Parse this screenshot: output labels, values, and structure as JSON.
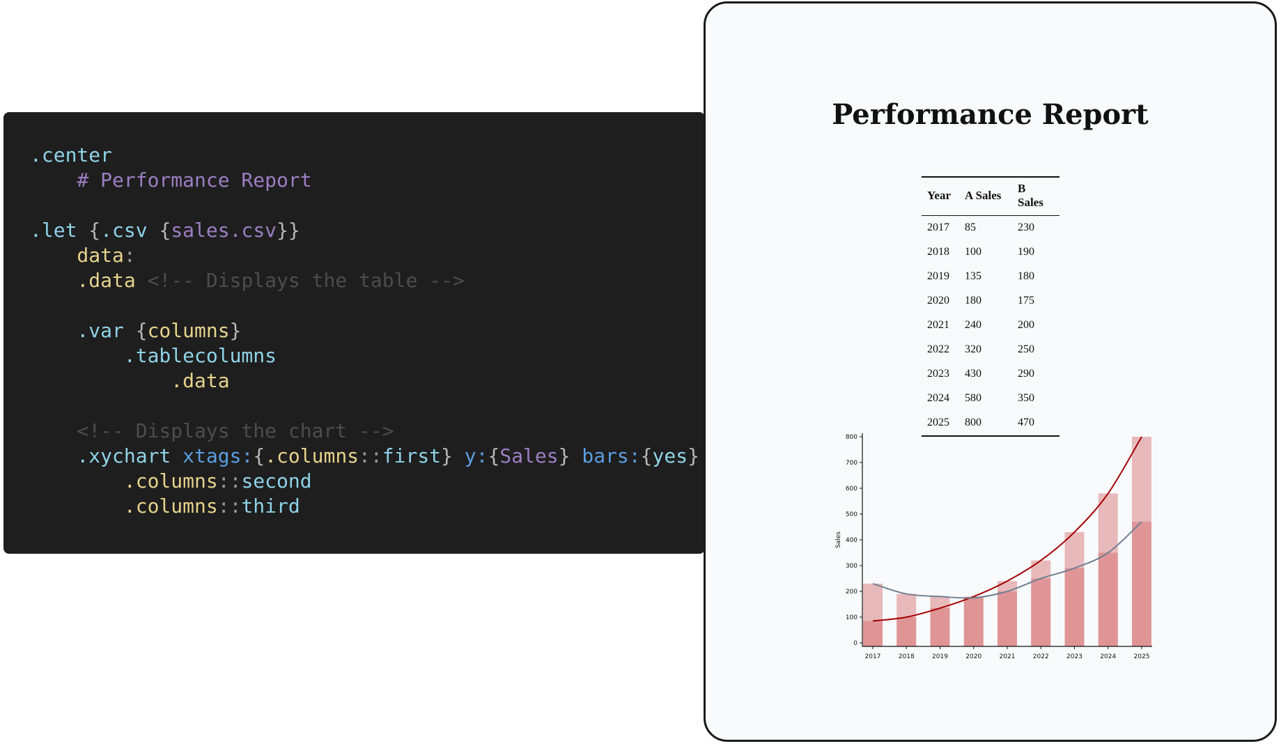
{
  "editor": {
    "lines": [
      [
        [
          ".center",
          "t-dir"
        ]
      ],
      [
        [
          "    # Performance Report",
          "t-head"
        ]
      ],
      [],
      [
        [
          ".let ",
          "t-dir"
        ],
        [
          "{",
          "t-br"
        ],
        [
          ".csv ",
          "t-dir"
        ],
        [
          "{",
          "t-br"
        ],
        [
          "sales.csv",
          "t-pur"
        ],
        [
          "}}",
          "t-br"
        ]
      ],
      [
        [
          "    data",
          "t-yel"
        ],
        [
          ":",
          "t-sep"
        ]
      ],
      [
        [
          "    .data ",
          "t-yel"
        ],
        [
          "<!-- Displays the table -->",
          "t-com"
        ]
      ],
      [],
      [
        [
          "    .var ",
          "t-dir"
        ],
        [
          "{",
          "t-br"
        ],
        [
          "columns",
          "t-yel"
        ],
        [
          "}",
          "t-br"
        ]
      ],
      [
        [
          "        .tablecolumns",
          "t-dir"
        ]
      ],
      [
        [
          "            .data",
          "t-yel"
        ]
      ],
      [],
      [
        [
          "    <!-- Displays the chart -->",
          "t-com"
        ]
      ],
      [
        [
          "    .xychart ",
          "t-dir"
        ],
        [
          "xtags:",
          "t-key"
        ],
        [
          "{",
          "t-br"
        ],
        [
          ".columns",
          "t-yel"
        ],
        [
          "::",
          "t-sep"
        ],
        [
          "first",
          "t-dir"
        ],
        [
          "} ",
          "t-br"
        ],
        [
          "y:",
          "t-key"
        ],
        [
          "{",
          "t-br"
        ],
        [
          "Sales",
          "t-pur"
        ],
        [
          "} ",
          "t-br"
        ],
        [
          "bars:",
          "t-key"
        ],
        [
          "{",
          "t-br"
        ],
        [
          "yes",
          "t-dir"
        ],
        [
          "}",
          "t-br"
        ]
      ],
      [
        [
          "        .columns",
          "t-yel"
        ],
        [
          "::",
          "t-sep"
        ],
        [
          "second",
          "t-dir"
        ]
      ],
      [
        [
          "        .columns",
          "t-yel"
        ],
        [
          "::",
          "t-sep"
        ],
        [
          "third",
          "t-dir"
        ]
      ]
    ]
  },
  "preview": {
    "title": "Performance Report",
    "table": {
      "headers": [
        "Year",
        "A Sales",
        "B Sales"
      ],
      "rows": [
        [
          "2017",
          "85",
          "230"
        ],
        [
          "2018",
          "100",
          "190"
        ],
        [
          "2019",
          "135",
          "180"
        ],
        [
          "2020",
          "180",
          "175"
        ],
        [
          "2021",
          "240",
          "200"
        ],
        [
          "2022",
          "320",
          "250"
        ],
        [
          "2023",
          "430",
          "290"
        ],
        [
          "2024",
          "580",
          "350"
        ],
        [
          "2025",
          "800",
          "470"
        ]
      ]
    }
  },
  "chart_data": {
    "type": "bar",
    "categories": [
      "2017",
      "2018",
      "2019",
      "2020",
      "2021",
      "2022",
      "2023",
      "2024",
      "2025"
    ],
    "series": [
      {
        "values": [
          85,
          100,
          135,
          180,
          240,
          320,
          430,
          580,
          800
        ],
        "bar_color": "#e4a7a7",
        "line_color": "#a30000"
      },
      {
        "values": [
          230,
          190,
          180,
          175,
          200,
          250,
          290,
          350,
          470
        ],
        "bar_color": "#e4a7a7",
        "line_color": "#6f7f91"
      }
    ],
    "ylabel": "Sales",
    "xlabel": "",
    "ylim": [
      0,
      800
    ],
    "yticks": [
      0,
      100,
      200,
      300,
      400,
      500,
      600,
      700,
      800
    ],
    "grid": false,
    "legend": "none"
  }
}
